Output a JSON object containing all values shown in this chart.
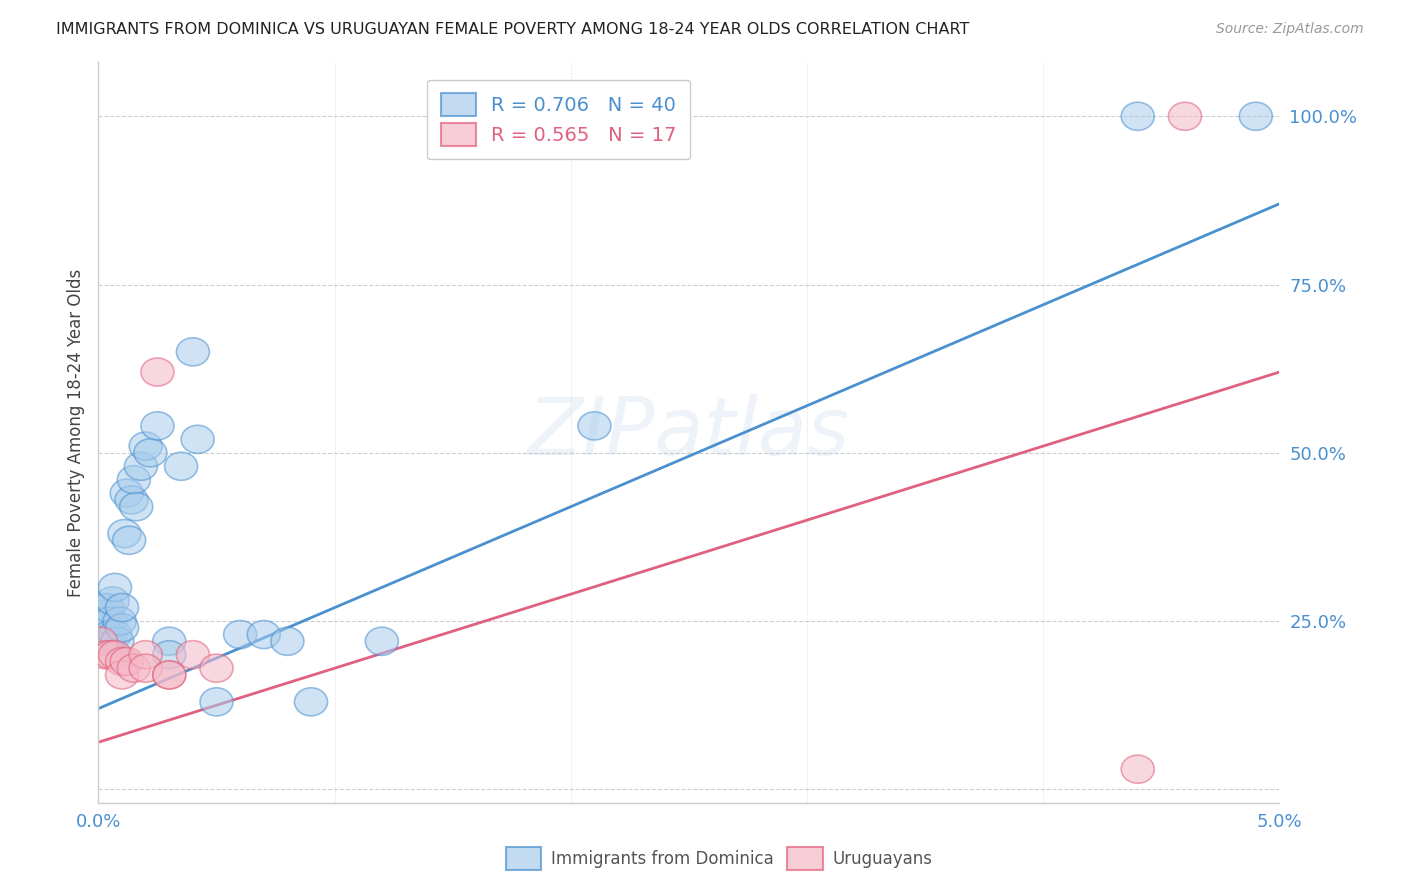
{
  "title": "IMMIGRANTS FROM DOMINICA VS URUGUAYAN FEMALE POVERTY AMONG 18-24 YEAR OLDS CORRELATION CHART",
  "source": "Source: ZipAtlas.com",
  "ylabel": "Female Poverty Among 18-24 Year Olds",
  "xlim": [
    0.0,
    0.05
  ],
  "ylim": [
    -0.02,
    1.08
  ],
  "yticks": [
    0.0,
    0.25,
    0.5,
    0.75,
    1.0
  ],
  "ytick_labels": [
    "",
    "25.0%",
    "50.0%",
    "75.0%",
    "100.0%"
  ],
  "xtick_positions": [
    0.0,
    0.01,
    0.02,
    0.03,
    0.04,
    0.05
  ],
  "xtick_labels": [
    "0.0%",
    "",
    "",
    "",
    "",
    "5.0%"
  ],
  "blue_R": 0.706,
  "blue_N": 40,
  "pink_R": 0.565,
  "pink_N": 17,
  "blue_fill_color": "#a8ccec",
  "pink_fill_color": "#f4b8c8",
  "blue_edge_color": "#4a90d0",
  "pink_edge_color": "#e0607a",
  "blue_line_color": "#4a90d0",
  "pink_line_color": "#e06080",
  "legend_label_blue": "Immigrants from Dominica",
  "legend_label_pink": "Uruguayans",
  "watermark": "ZIPatlas",
  "blue_points_x": [
    0.0001,
    0.0002,
    0.0002,
    0.0003,
    0.0003,
    0.0004,
    0.0004,
    0.0005,
    0.0005,
    0.0006,
    0.0007,
    0.0007,
    0.0008,
    0.0009,
    0.001,
    0.001,
    0.0011,
    0.0012,
    0.0013,
    0.0014,
    0.0015,
    0.0016,
    0.0018,
    0.002,
    0.0022,
    0.0025,
    0.003,
    0.003,
    0.0035,
    0.004,
    0.0042,
    0.005,
    0.006,
    0.007,
    0.008,
    0.009,
    0.012,
    0.021,
    0.044,
    0.049
  ],
  "blue_points_y": [
    0.26,
    0.22,
    0.24,
    0.27,
    0.25,
    0.27,
    0.22,
    0.25,
    0.23,
    0.28,
    0.3,
    0.23,
    0.22,
    0.25,
    0.24,
    0.27,
    0.38,
    0.44,
    0.37,
    0.43,
    0.46,
    0.42,
    0.48,
    0.51,
    0.5,
    0.54,
    0.22,
    0.2,
    0.48,
    0.65,
    0.52,
    0.13,
    0.23,
    0.23,
    0.22,
    0.13,
    0.22,
    0.54,
    1.0,
    1.0
  ],
  "pink_points_x": [
    0.0001,
    0.0003,
    0.0005,
    0.0007,
    0.001,
    0.001,
    0.0012,
    0.0015,
    0.002,
    0.002,
    0.0025,
    0.003,
    0.003,
    0.004,
    0.005,
    0.044,
    0.046
  ],
  "pink_points_y": [
    0.22,
    0.2,
    0.2,
    0.2,
    0.19,
    0.17,
    0.19,
    0.18,
    0.2,
    0.18,
    0.62,
    0.17,
    0.17,
    0.2,
    0.18,
    0.03,
    1.0
  ],
  "blue_line_x0": 0.0,
  "blue_line_y0": 0.12,
  "blue_line_x1": 0.05,
  "blue_line_y1": 0.87,
  "pink_line_x0": 0.0,
  "pink_line_y0": 0.07,
  "pink_line_x1": 0.05,
  "pink_line_y1": 0.62
}
